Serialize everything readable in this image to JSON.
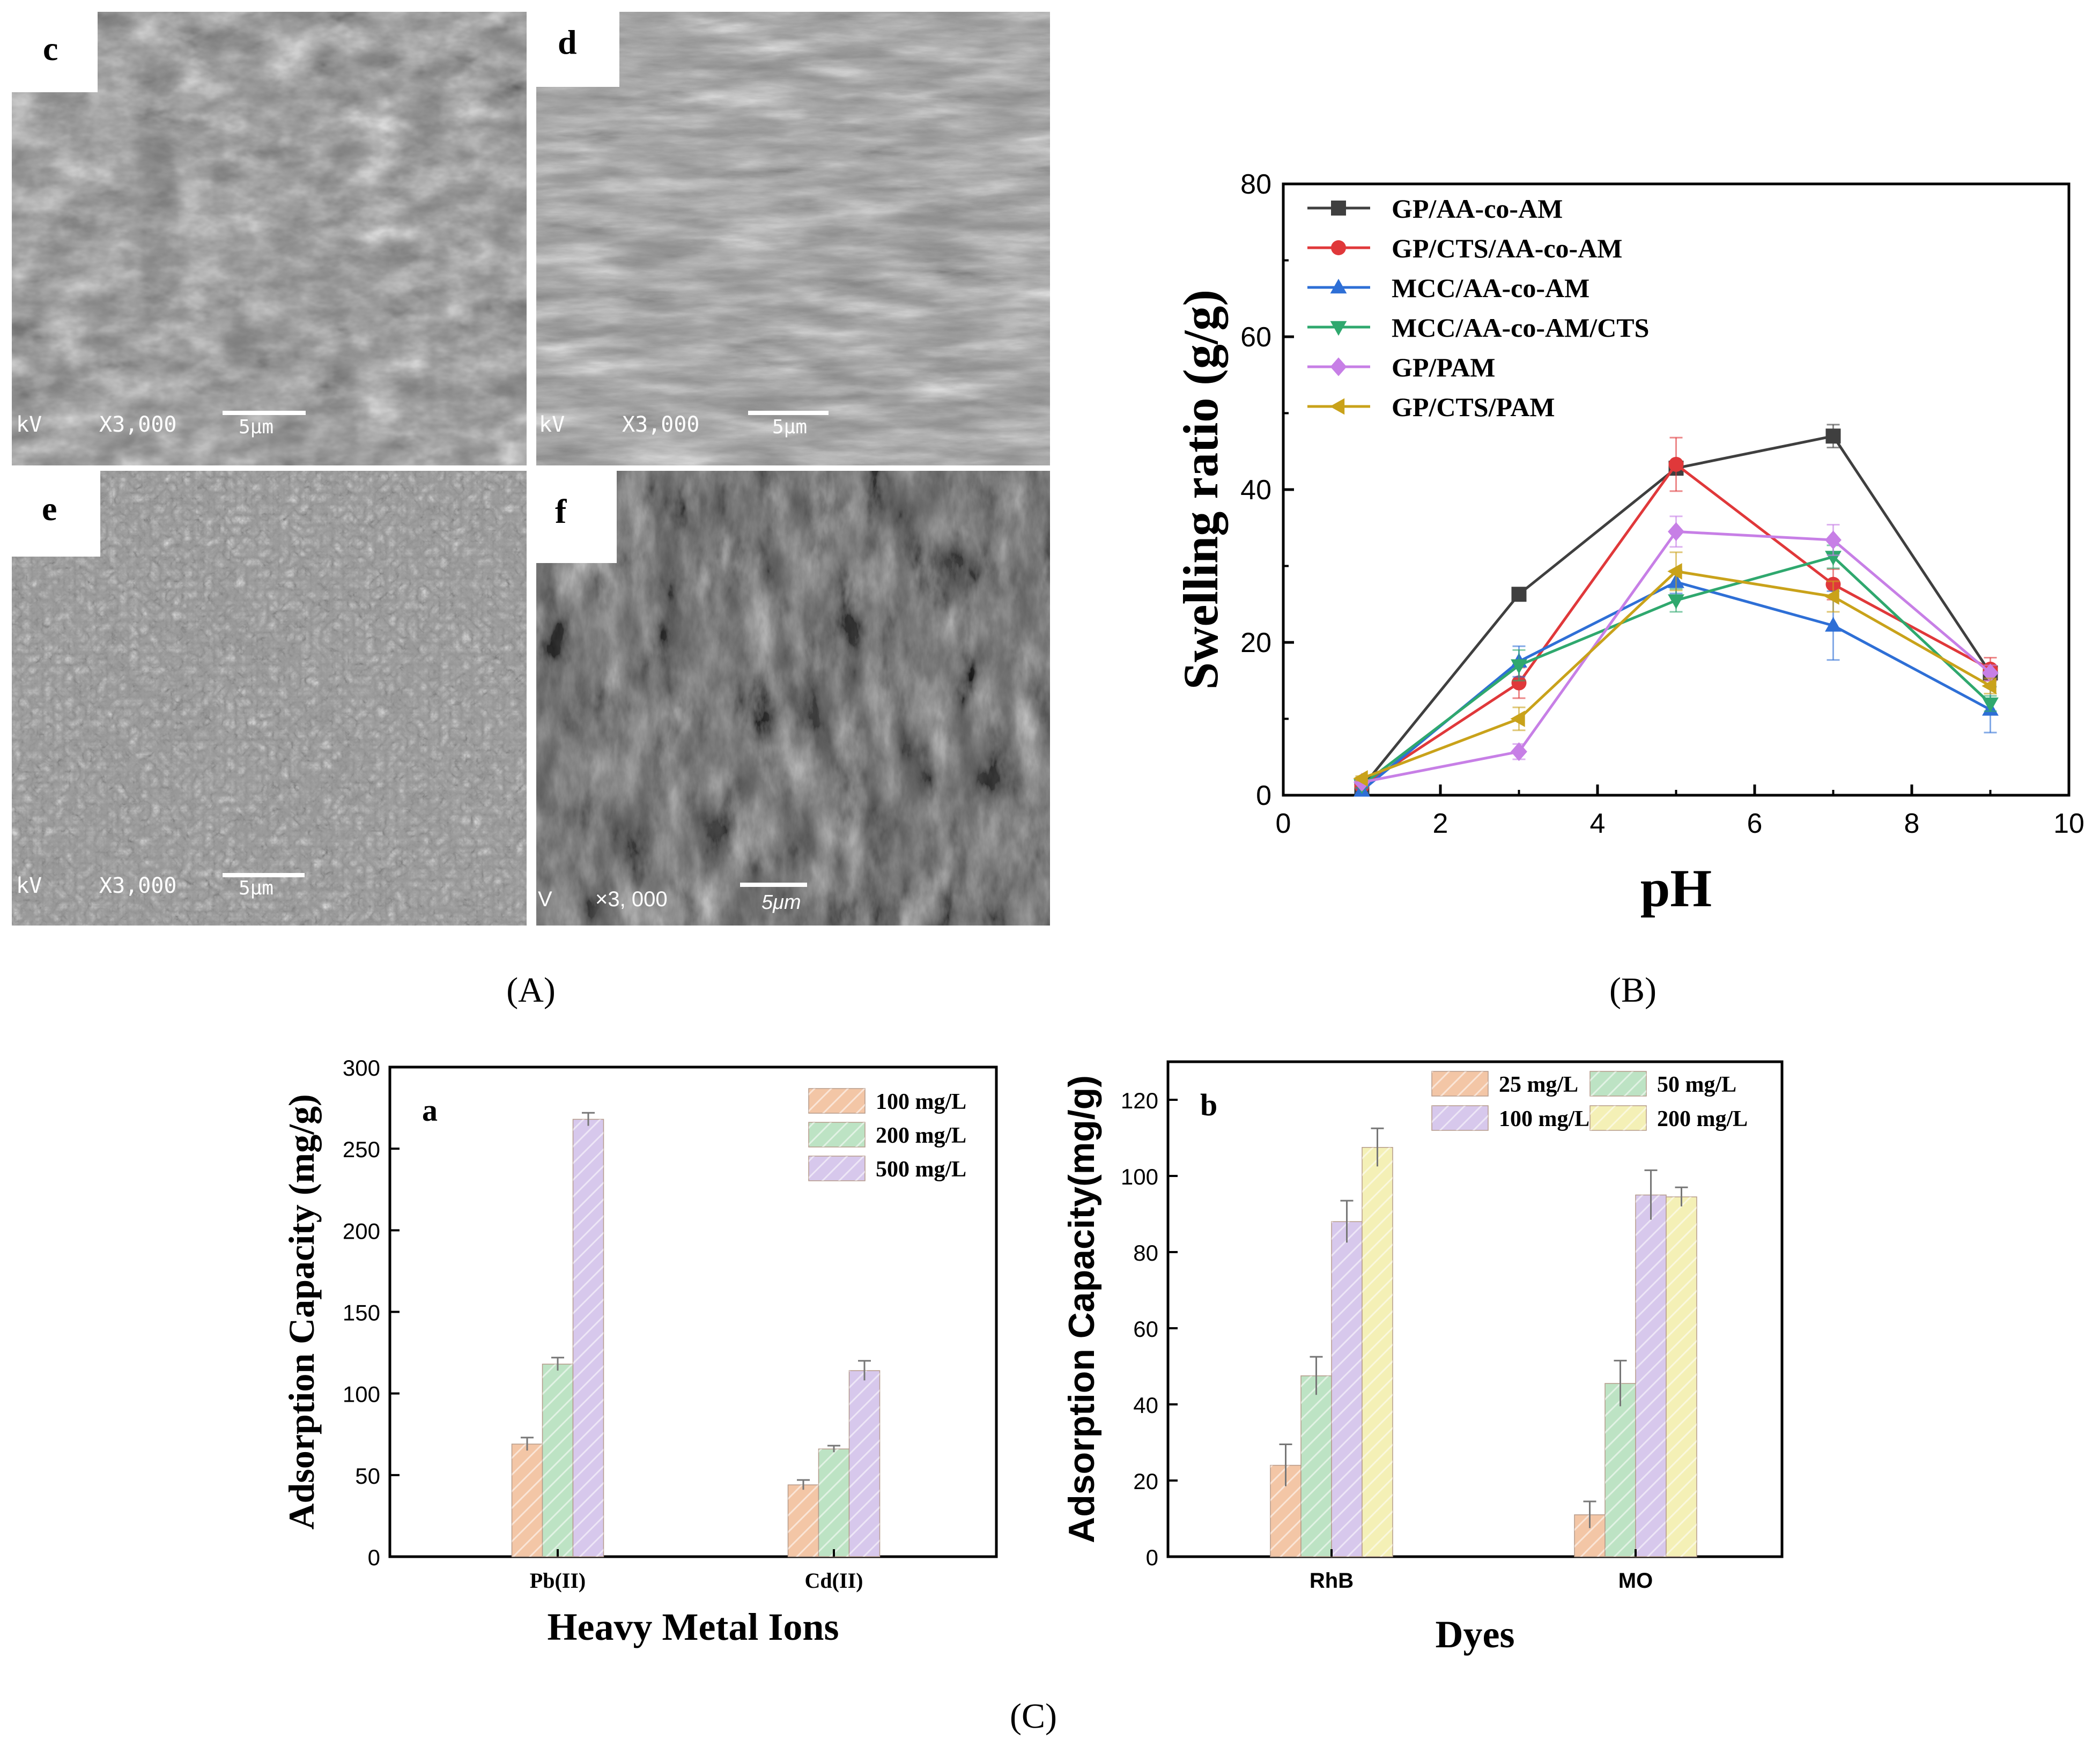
{
  "figure_labels": {
    "A": "(A)",
    "B": "(B)",
    "C": "(C)"
  },
  "sem_panels": [
    {
      "letter": "c",
      "magnification": "X3,000",
      "scale": "5μm",
      "kv": "kV"
    },
    {
      "letter": "d",
      "magnification": "X3,000",
      "scale": "5μm",
      "kv": "kV"
    },
    {
      "letter": "e",
      "magnification": "X3,000",
      "scale": "5μm",
      "kv": "kV"
    },
    {
      "letter": "f",
      "magnification": "×3, 000",
      "scale": "5μm",
      "kv": "V"
    }
  ],
  "colors": {
    "GP/AA-co-AM": "#3f3f3f",
    "GP/CTS/AA-co-AM": "#e0383a",
    "MCC/AA-co-AM": "#2e6fd6",
    "MCC/AA-co-AM/CTS": "#2fa86e",
    "GP/PAM": "#c77fe6",
    "GP/CTS/PAM": "#c9a21a",
    "bar_orange": "#f3c6a6",
    "bar_green": "#bde3c4",
    "bar_purple": "#d7c8ec",
    "bar_yellow": "#f4f0b6"
  },
  "chart_data": [
    {
      "id": "B",
      "type": "line",
      "title": "",
      "xlabel": "pH",
      "ylabel": "Swelling ratio (g/g)",
      "xlim": [
        0,
        10
      ],
      "ylim": [
        0,
        80
      ],
      "xticks": [
        "0",
        "2",
        "4",
        "6",
        "8",
        "10"
      ],
      "yticks": [
        "0",
        "20",
        "40",
        "60",
        "80"
      ],
      "x": [
        1,
        3,
        5,
        7,
        9
      ],
      "legend_position": "top-left",
      "series": [
        {
          "name": "GP/AA-co-AM",
          "marker": "square",
          "values": [
            1.0,
            26.3,
            42.8,
            47.0,
            16.0
          ],
          "errors": [
            0.3,
            0.5,
            0.8,
            1.5,
            1.0
          ]
        },
        {
          "name": "GP/CTS/AA-co-AM",
          "marker": "circle",
          "values": [
            1.2,
            14.7,
            43.3,
            27.6,
            16.5
          ],
          "errors": [
            0.3,
            2.0,
            3.5,
            2.0,
            1.5
          ]
        },
        {
          "name": "MCC/AA-co-AM",
          "marker": "triangle-up",
          "values": [
            0.6,
            17.5,
            27.9,
            22.2,
            11.2
          ],
          "errors": [
            0.3,
            2.0,
            1.5,
            4.5,
            3.0
          ]
        },
        {
          "name": "MCC/AA-co-AM/CTS",
          "marker": "triangle-down",
          "values": [
            1.3,
            17.0,
            25.5,
            31.2,
            12.0
          ],
          "errors": [
            0.3,
            2.0,
            1.5,
            1.5,
            1.0
          ]
        },
        {
          "name": "GP/PAM",
          "marker": "diamond",
          "values": [
            1.7,
            5.7,
            34.5,
            33.4,
            16.0
          ],
          "errors": [
            0.3,
            1.0,
            2.0,
            2.0,
            1.0
          ]
        },
        {
          "name": "GP/CTS/PAM",
          "marker": "triangle-left",
          "values": [
            2.2,
            10.0,
            29.3,
            26.0,
            14.3
          ],
          "errors": [
            0.3,
            1.5,
            2.5,
            2.0,
            1.0
          ]
        }
      ]
    },
    {
      "id": "Ca",
      "type": "bar",
      "panel_letter": "a",
      "title": "",
      "xlabel": "Heavy Metal Ions",
      "ylabel": "Adsorption Capacity (mg/g)",
      "ylim": [
        0,
        300
      ],
      "yticks": [
        "0",
        "50",
        "100",
        "150",
        "200",
        "250",
        "300"
      ],
      "categories": [
        "Pb(II)",
        "Cd(II)"
      ],
      "legend_position": "top-right",
      "series": [
        {
          "name": "100 mg/L",
          "color_key": "bar_orange",
          "values": [
            69,
            44
          ],
          "errors": [
            4,
            3
          ]
        },
        {
          "name": "200 mg/L",
          "color_key": "bar_green",
          "values": [
            118,
            66
          ],
          "errors": [
            4,
            2
          ]
        },
        {
          "name": "500 mg/L",
          "color_key": "bar_purple",
          "values": [
            268,
            114
          ],
          "errors": [
            4,
            6
          ]
        }
      ]
    },
    {
      "id": "Cb",
      "type": "bar",
      "panel_letter": "b",
      "title": "",
      "xlabel": "Dyes",
      "ylabel": "Adsorption Capacity(mg/g)",
      "ylim": [
        0,
        130
      ],
      "yticks": [
        "0",
        "20",
        "40",
        "60",
        "80",
        "100",
        "120"
      ],
      "categories": [
        "RhB",
        "MO"
      ],
      "legend_position": "top-right",
      "series": [
        {
          "name": "25 mg/L",
          "color_key": "bar_orange",
          "values": [
            24,
            11
          ],
          "errors": [
            5.5,
            3.5
          ]
        },
        {
          "name": "50 mg/L",
          "color_key": "bar_green",
          "values": [
            47.5,
            45.5
          ],
          "errors": [
            5,
            6
          ]
        },
        {
          "name": "100 mg/L",
          "color_key": "bar_purple",
          "values": [
            88,
            95
          ],
          "errors": [
            5.5,
            6.5
          ]
        },
        {
          "name": "200 mg/L",
          "color_key": "bar_yellow",
          "values": [
            107.5,
            94.5
          ],
          "errors": [
            5,
            2.5
          ]
        }
      ]
    }
  ]
}
